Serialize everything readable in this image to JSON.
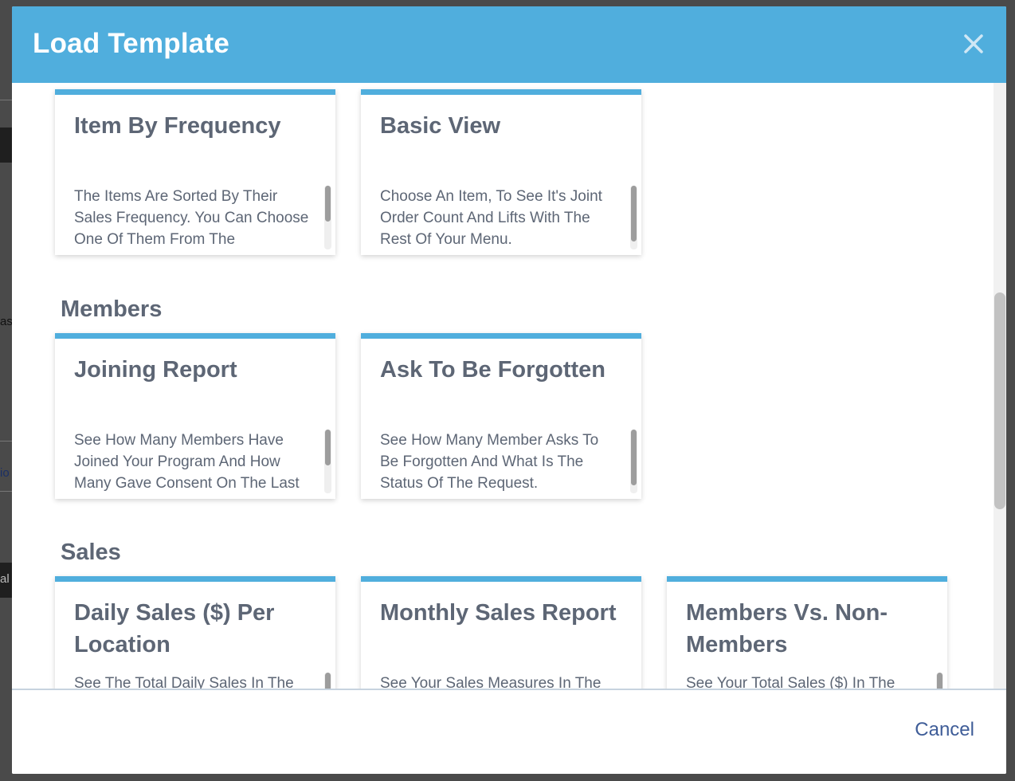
{
  "background": {
    "fragments": [
      "as",
      "io",
      "al"
    ]
  },
  "modal": {
    "title": "Load Template",
    "close_label": "×",
    "cancel_label": "Cancel"
  },
  "colors": {
    "header": "#50aedd",
    "card_accent": "#50aedd",
    "text": "#5d6675",
    "link": "#3f5d98"
  },
  "sections": [
    {
      "title": "",
      "cards": [
        {
          "title": "Item By Frequency",
          "description": "The Items Are Sorted By Their Sales Frequency. You Can Choose One Of Them From The"
        },
        {
          "title": "Basic View",
          "description": "Choose An Item, To See It's Joint Order Count And Lifts With The Rest Of Your Menu."
        }
      ]
    },
    {
      "title": "Members",
      "cards": [
        {
          "title": "Joining Report",
          "description": "See How Many Members Have Joined Your Program And How Many Gave Consent On The Last"
        },
        {
          "title": "Ask To Be Forgotten",
          "description": "See How Many Member Asks To Be Forgotten And What Is The Status Of The Request."
        }
      ]
    },
    {
      "title": "Sales",
      "cards": [
        {
          "title": "Daily Sales ($) Per Location",
          "description": "See The Total Daily Sales In The"
        },
        {
          "title": "Monthly Sales Report",
          "description": "See Your Sales Measures In The"
        },
        {
          "title": "Members Vs. Non-Members",
          "description": "See Your Total Sales ($) In The"
        }
      ]
    }
  ]
}
